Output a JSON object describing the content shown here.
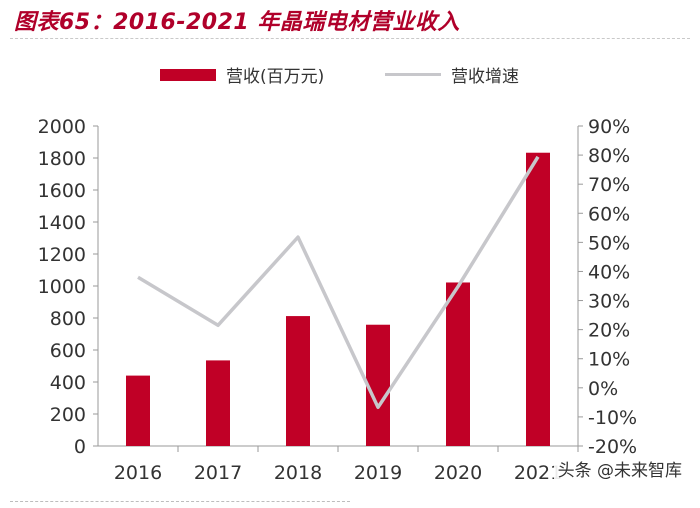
{
  "title": "图表65：2016-2021 年晶瑞电材营业收入",
  "watermark": "头条 @未来智库",
  "colors": {
    "bar": "#c00026",
    "line": "#c7c7cb",
    "title": "#b0002a"
  },
  "chart_data": {
    "type": "bar",
    "categories": [
      "2016",
      "2017",
      "2018",
      "2019",
      "2020",
      "2021"
    ],
    "series": [
      {
        "name": "营收(百万元)",
        "type": "bar",
        "axis": "left",
        "values": [
          440,
          535,
          812,
          758,
          1022,
          1833
        ]
      },
      {
        "name": "营收增速",
        "type": "line",
        "axis": "right",
        "values": [
          38,
          21.5,
          51.8,
          -6.7,
          34.8,
          79.4
        ]
      }
    ],
    "ylim_left": [
      0,
      2000
    ],
    "yticks_left": [
      "0",
      "200",
      "400",
      "600",
      "800",
      "1000",
      "1200",
      "1400",
      "1600",
      "1800",
      "2000"
    ],
    "ylim_right": [
      -20,
      90
    ],
    "yticks_right": [
      "-20%",
      "-10%",
      "0%",
      "10%",
      "20%",
      "30%",
      "40%",
      "50%",
      "60%",
      "70%",
      "80%",
      "90%"
    ],
    "legend_position": "top",
    "grid": false
  }
}
